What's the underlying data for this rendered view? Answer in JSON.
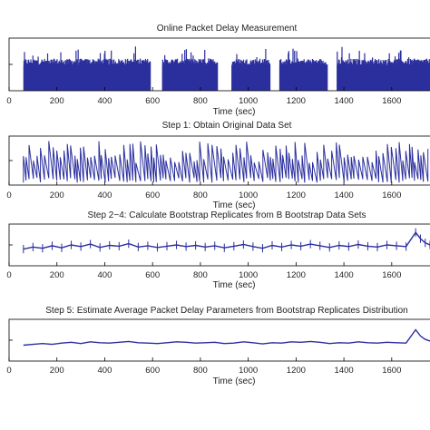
{
  "chart_data": [
    {
      "type": "bar",
      "title": "Online Packet Delay Measurement",
      "xlabel": "Time (sec)",
      "ylabel": "",
      "xlim": [
        0,
        1760
      ],
      "xticks": [
        0,
        200,
        400,
        600,
        800,
        1000,
        1200,
        1400,
        1600
      ],
      "ylim": [
        0,
        1
      ],
      "grid": false,
      "series_color": "#2b2f9e",
      "gaps": [
        [
          590,
          640
        ],
        [
          870,
          930
        ],
        [
          1090,
          1130
        ],
        [
          1330,
          1370
        ]
      ],
      "segments": [
        {
          "start": 60,
          "end": 590,
          "level": 0.55
        },
        {
          "start": 640,
          "end": 870,
          "level": 0.55
        },
        {
          "start": 930,
          "end": 1090,
          "level": 0.55
        },
        {
          "start": 1130,
          "end": 1330,
          "level": 0.55
        },
        {
          "start": 1370,
          "end": 1760,
          "level": 0.55
        }
      ]
    },
    {
      "type": "line",
      "title": "Step 1: Obtain Original Data Set",
      "xlabel": "Time (sec)",
      "ylabel": "",
      "xlim": [
        0,
        1760
      ],
      "xticks": [
        0,
        200,
        400,
        600,
        800,
        1000,
        1200,
        1400,
        1600
      ],
      "ylim": [
        0,
        1
      ],
      "grid": false,
      "series_color": "#2b2f9e"
    },
    {
      "type": "line",
      "title": "Step 2−4: Calculate Bootstrap Replicates from B Bootstrap Data Sets",
      "xlabel": "Time (sec)",
      "ylabel": "",
      "xlim": [
        0,
        1760
      ],
      "xticks": [
        0,
        200,
        400,
        600,
        800,
        1000,
        1200,
        1400,
        1600
      ],
      "ylim": [
        0,
        1
      ],
      "grid": false,
      "series_color": "#2b2f9e",
      "x": [
        60,
        100,
        140,
        180,
        220,
        260,
        300,
        340,
        380,
        420,
        460,
        500,
        540,
        580,
        620,
        660,
        700,
        740,
        780,
        820,
        860,
        900,
        940,
        980,
        1020,
        1060,
        1100,
        1140,
        1180,
        1220,
        1260,
        1300,
        1340,
        1380,
        1420,
        1460,
        1500,
        1540,
        1580,
        1620,
        1660,
        1700,
        1720,
        1740,
        1760
      ],
      "y": [
        0.4,
        0.45,
        0.42,
        0.48,
        0.43,
        0.5,
        0.46,
        0.52,
        0.44,
        0.49,
        0.47,
        0.53,
        0.45,
        0.48,
        0.44,
        0.47,
        0.5,
        0.46,
        0.49,
        0.45,
        0.48,
        0.43,
        0.47,
        0.51,
        0.46,
        0.42,
        0.49,
        0.45,
        0.5,
        0.47,
        0.52,
        0.48,
        0.44,
        0.49,
        0.46,
        0.51,
        0.47,
        0.45,
        0.5,
        0.48,
        0.46,
        0.8,
        0.65,
        0.55,
        0.5
      ]
    },
    {
      "type": "line",
      "title": "Step 5: Estimate Average Packet Delay Parameters from Bootstrap Replicates Distribution",
      "xlabel": "Time (sec)",
      "ylabel": "",
      "xlim": [
        0,
        1760
      ],
      "xticks": [
        0,
        200,
        400,
        600,
        800,
        1000,
        1200,
        1400,
        1600
      ],
      "ylim": [
        0,
        1
      ],
      "grid": false,
      "series_color": "#2b2f9e",
      "x": [
        60,
        100,
        140,
        180,
        220,
        260,
        300,
        340,
        380,
        420,
        460,
        500,
        540,
        580,
        620,
        660,
        700,
        740,
        780,
        820,
        860,
        900,
        940,
        980,
        1020,
        1060,
        1100,
        1140,
        1180,
        1220,
        1260,
        1300,
        1340,
        1380,
        1420,
        1460,
        1500,
        1540,
        1580,
        1620,
        1660,
        1700,
        1720,
        1740,
        1760
      ],
      "y": [
        0.38,
        0.4,
        0.42,
        0.4,
        0.43,
        0.45,
        0.42,
        0.46,
        0.44,
        0.43,
        0.45,
        0.47,
        0.44,
        0.43,
        0.42,
        0.44,
        0.46,
        0.45,
        0.43,
        0.44,
        0.45,
        0.42,
        0.43,
        0.46,
        0.44,
        0.41,
        0.44,
        0.43,
        0.46,
        0.45,
        0.47,
        0.45,
        0.42,
        0.44,
        0.43,
        0.46,
        0.44,
        0.43,
        0.45,
        0.44,
        0.43,
        0.75,
        0.6,
        0.52,
        0.48
      ]
    }
  ]
}
